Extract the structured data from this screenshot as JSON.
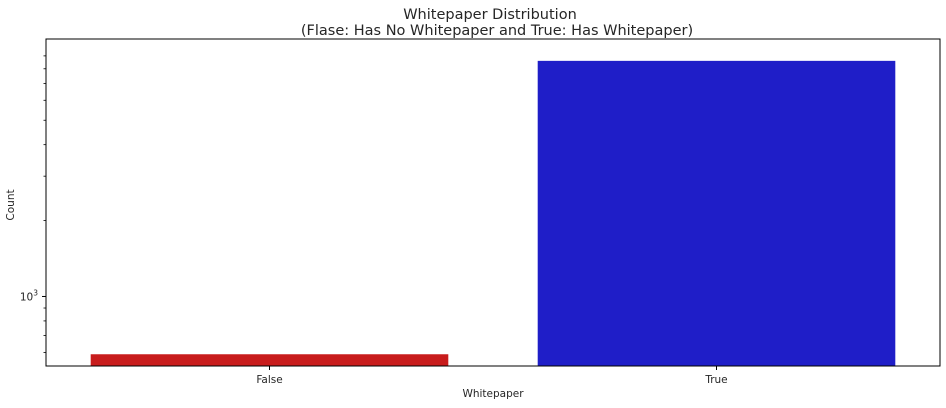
{
  "chart_data": {
    "type": "bar",
    "title": "Whitepaper Distribution",
    "subtitle": "(Flase: Has No Whitepaper  and  True: Has Whitepaper)",
    "xlabel": "Whitepaper",
    "ylabel": "Count",
    "yscale": "log",
    "ylim": [
      530,
      10500
    ],
    "ytick_base": "10",
    "ytick_exp": "3",
    "ytick_value": 1000,
    "grid": false,
    "categories": [
      "False",
      "True"
    ],
    "values": [
      590,
      8600
    ],
    "colors": [
      "#c81c1c",
      "#1f1ec8"
    ]
  }
}
